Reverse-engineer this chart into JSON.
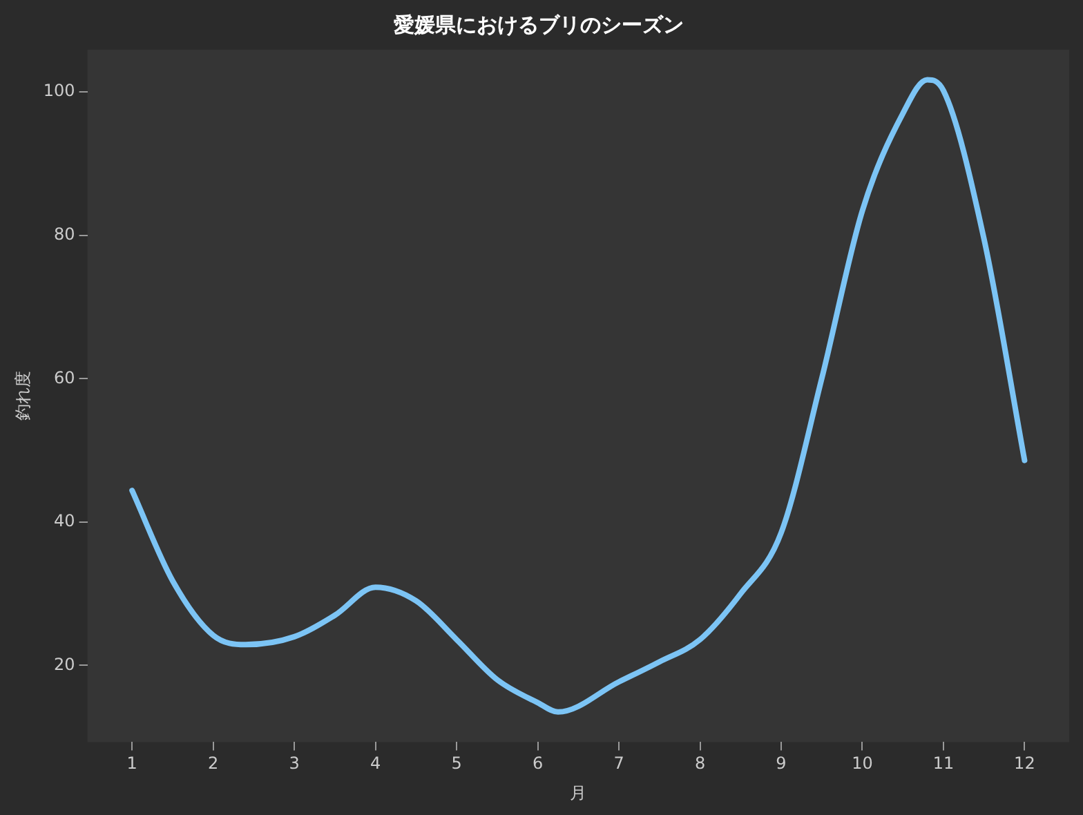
{
  "chart_data": {
    "type": "line",
    "title": "愛媛県におけるブリのシーズン",
    "xlabel": "月",
    "ylabel": "釣れ度",
    "x": [
      1,
      1.5,
      2,
      2.4,
      3,
      3.5,
      4,
      4.5,
      5,
      5.5,
      6,
      6.25,
      7,
      7.5,
      8,
      8.5,
      9,
      9.5,
      10,
      10.5,
      10.8,
      11,
      11.5,
      12
    ],
    "series": [
      {
        "color": "#7cc4f5",
        "values": [
          44.4,
          31.8,
          24.2,
          22.9,
          24,
          27,
          30.9,
          29,
          23.6,
          18,
          14.8,
          13.5,
          17.7,
          20.5,
          23.6,
          30,
          38.5,
          60,
          83.4,
          97,
          101.7,
          100.2,
          79.5,
          48.6
        ]
      }
    ],
    "xlim": [
      0.45,
      12.55
    ],
    "xticks": [
      1,
      2,
      3,
      4,
      5,
      6,
      7,
      8,
      9,
      10,
      11,
      12
    ],
    "ylim": [
      9.3,
      105.9
    ],
    "yticks": [
      20,
      40,
      60,
      80,
      100
    ],
    "grid": false,
    "legend": false,
    "marker": "none",
    "line_style": "solid"
  }
}
